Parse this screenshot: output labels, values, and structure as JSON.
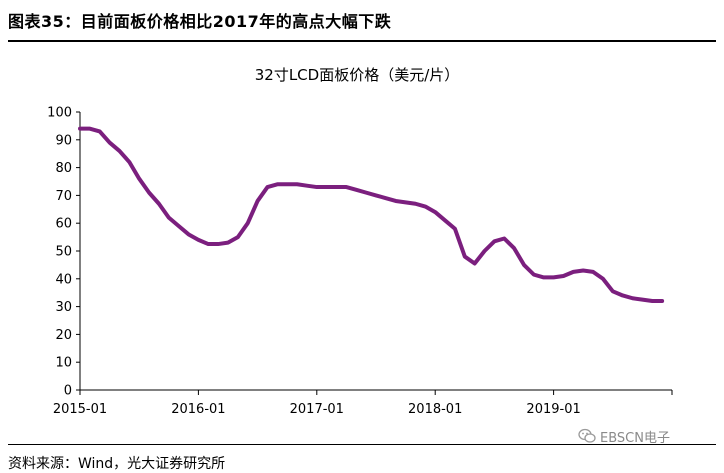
{
  "figure": {
    "title": "图表35：目前面板价格相比2017年的高点大幅下跌",
    "source": "资料来源：Wind，光大证券研究所",
    "watermark": "EBSCN电子",
    "accent_color": "#7b1f7e"
  },
  "chart_data": {
    "type": "line",
    "title": "32寸LCD面板价格（美元/片）",
    "xlabel": "",
    "ylabel": "",
    "ylim": [
      0,
      100
    ],
    "yticks": [
      0,
      10,
      20,
      30,
      40,
      50,
      60,
      70,
      80,
      90,
      100
    ],
    "xticks": [
      "2015-01",
      "2016-01",
      "2017-01",
      "2018-01",
      "2019-01"
    ],
    "grid": false,
    "series": [
      {
        "color": "#7b1f7e",
        "x": [
          "2015-01",
          "2015-02",
          "2015-03",
          "2015-04",
          "2015-05",
          "2015-06",
          "2015-07",
          "2015-08",
          "2015-09",
          "2015-10",
          "2015-11",
          "2015-12",
          "2016-01",
          "2016-02",
          "2016-03",
          "2016-04",
          "2016-05",
          "2016-06",
          "2016-07",
          "2016-08",
          "2016-09",
          "2016-10",
          "2016-11",
          "2016-12",
          "2017-01",
          "2017-02",
          "2017-03",
          "2017-04",
          "2017-05",
          "2017-06",
          "2017-07",
          "2017-08",
          "2017-09",
          "2017-10",
          "2017-11",
          "2017-12",
          "2018-01",
          "2018-02",
          "2018-03",
          "2018-04",
          "2018-05",
          "2018-06",
          "2018-07",
          "2018-08",
          "2018-09",
          "2018-10",
          "2018-11",
          "2018-12",
          "2019-01",
          "2019-02",
          "2019-03",
          "2019-04",
          "2019-05",
          "2019-06",
          "2019-07",
          "2019-08",
          "2019-09",
          "2019-10",
          "2019-11",
          "2019-12"
        ],
        "values": [
          94,
          94,
          93,
          89,
          86,
          82,
          76,
          71,
          67,
          62,
          59,
          56,
          54,
          52.5,
          52.5,
          53,
          55,
          60,
          68,
          73,
          74,
          74,
          74,
          73.5,
          73,
          73,
          73,
          73,
          72,
          71,
          70,
          69,
          68,
          67.5,
          67,
          66,
          64,
          61,
          58,
          48,
          45.5,
          50,
          53.5,
          54.5,
          51,
          45,
          41.5,
          40.5,
          40.5,
          41,
          42.5,
          43,
          42.5,
          40,
          35.5,
          34,
          33,
          32.5,
          32,
          32
        ]
      }
    ]
  }
}
